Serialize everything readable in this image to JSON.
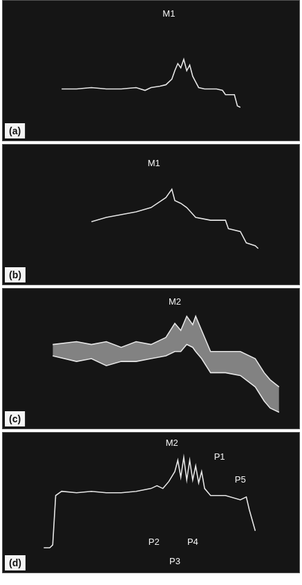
{
  "chart_data": [
    {
      "type": "line",
      "panel": "(a)",
      "xlim": [
        0,
        100
      ],
      "ylim": [
        0,
        100
      ],
      "tick_labels": false,
      "x": [
        20,
        25,
        30,
        35,
        40,
        45,
        48,
        50,
        53,
        55,
        57,
        58,
        59,
        60,
        61,
        62,
        63,
        64,
        65,
        66,
        68,
        70,
        72,
        74,
        75,
        76,
        78,
        79,
        80
      ],
      "series": [
        {
          "color": "#e6e6e6",
          "values": [
            37,
            37,
            38,
            37,
            37,
            38,
            36,
            38,
            39,
            40,
            44,
            50,
            55,
            52,
            58,
            50,
            54,
            46,
            42,
            38,
            37,
            37,
            37,
            36,
            33,
            33,
            33,
            25,
            24
          ]
        }
      ],
      "annotations": [
        {
          "text": "M1",
          "x": 56,
          "y": 90
        }
      ]
    },
    {
      "type": "line",
      "panel": "(b)",
      "xlim": [
        0,
        100
      ],
      "ylim": [
        0,
        100
      ],
      "tick_labels": false,
      "x": [
        30,
        35,
        40,
        45,
        50,
        55,
        57,
        58,
        60,
        62,
        65,
        70,
        75,
        76,
        80,
        82,
        85,
        86
      ],
      "series": [
        {
          "color": "#e6e6e6",
          "values": [
            45,
            48,
            50,
            52,
            55,
            62,
            68,
            60,
            58,
            55,
            48,
            46,
            46,
            40,
            38,
            30,
            28,
            26
          ]
        }
      ],
      "annotations": [
        {
          "text": "M1",
          "x": 51,
          "y": 86
        }
      ]
    },
    {
      "type": "range",
      "panel": "(c)",
      "xlim": [
        0,
        100
      ],
      "ylim": [
        0,
        100
      ],
      "tick_labels": false,
      "x": [
        17,
        25,
        30,
        35,
        40,
        45,
        50,
        55,
        58,
        60,
        62,
        64,
        65,
        67,
        70,
        75,
        80,
        85,
        88,
        90,
        93
      ],
      "series": [
        {
          "color": "#e6e6e6",
          "values": [
            60,
            62,
            60,
            62,
            58,
            62,
            60,
            65,
            75,
            70,
            80,
            74,
            80,
            70,
            55,
            55,
            55,
            50,
            40,
            35,
            30
          ]
        },
        {
          "color": "#e6e6e6",
          "values": [
            52,
            48,
            50,
            45,
            48,
            48,
            50,
            52,
            55,
            55,
            60,
            58,
            55,
            50,
            40,
            40,
            38,
            30,
            20,
            15,
            12
          ]
        }
      ],
      "annotations": [
        {
          "text": "M2",
          "x": 58,
          "y": 90
        }
      ]
    },
    {
      "type": "line",
      "panel": "(d)",
      "xlim": [
        0,
        100
      ],
      "ylim": [
        0,
        100
      ],
      "tick_labels": false,
      "x": [
        14,
        16,
        17,
        18,
        20,
        25,
        30,
        35,
        40,
        45,
        50,
        52,
        54,
        56,
        58,
        59,
        60,
        61,
        62,
        63,
        64,
        65,
        66,
        67,
        68,
        70,
        75,
        80,
        82,
        83,
        85
      ],
      "series": [
        {
          "color": "#e6e6e6",
          "values": [
            18,
            18,
            20,
            55,
            58,
            57,
            58,
            57,
            57,
            58,
            60,
            62,
            60,
            65,
            72,
            80,
            68,
            82,
            66,
            80,
            66,
            76,
            64,
            72,
            60,
            55,
            55,
            52,
            54,
            45,
            30
          ]
        }
      ],
      "annotations": [
        {
          "text": "M2",
          "x": 57,
          "y": 92
        },
        {
          "text": "P1",
          "x": 73,
          "y": 82
        },
        {
          "text": "P5",
          "x": 80,
          "y": 66
        },
        {
          "text": "P2",
          "x": 51,
          "y": 22
        },
        {
          "text": "P4",
          "x": 64,
          "y": 22
        },
        {
          "text": "P3",
          "x": 58,
          "y": 8
        }
      ]
    }
  ]
}
